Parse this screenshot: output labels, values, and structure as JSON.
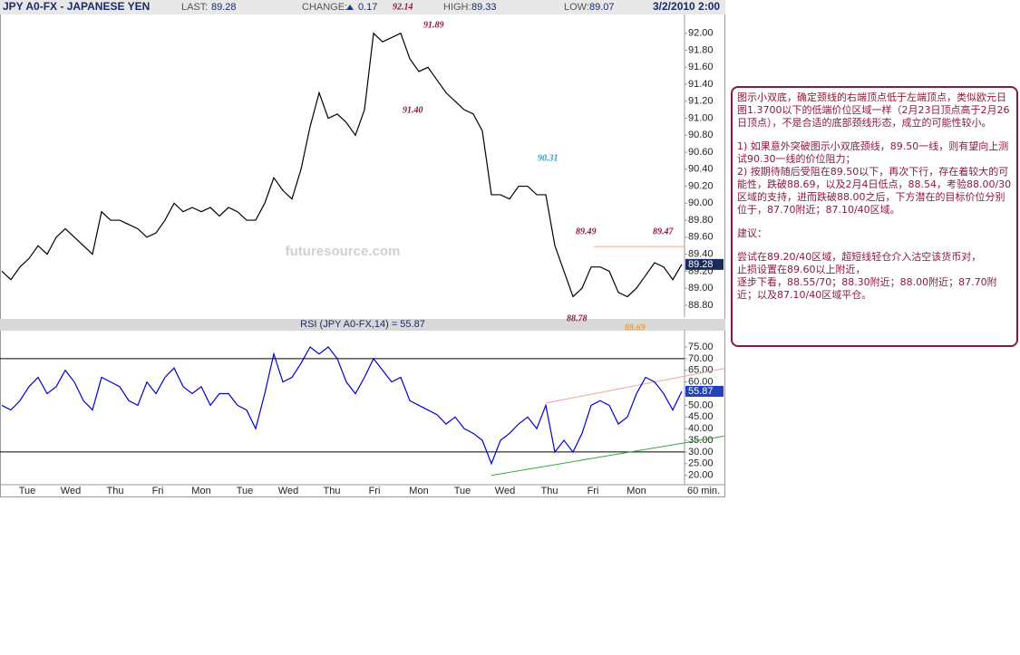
{
  "header": {
    "title": "JPY A0-FX - JAPANESE YEN",
    "last_label": "LAST:",
    "last": "89.28",
    "change_label": "CHANGE:",
    "change": "0.17",
    "high_label": "HIGH:",
    "high": "89.33",
    "low_label": "LOW:",
    "low": "89.07",
    "date": "3/2/2010 2:00"
  },
  "chart_data": [
    {
      "type": "line",
      "watermark": "futuresource.com",
      "series": [
        {
          "color": "#000000",
          "values": [
            89.2,
            89.1,
            89.25,
            89.35,
            89.5,
            89.4,
            89.6,
            89.7,
            89.6,
            89.5,
            89.4,
            89.9,
            89.8,
            89.8,
            89.75,
            89.7,
            89.6,
            89.65,
            89.8,
            90.0,
            89.9,
            89.95,
            89.9,
            89.95,
            89.85,
            89.95,
            89.9,
            89.8,
            89.8,
            90.0,
            90.3,
            90.15,
            90.05,
            90.4,
            90.9,
            91.3,
            91.0,
            91.05,
            90.95,
            90.8,
            91.1,
            92.0,
            91.9,
            91.95,
            92.0,
            91.7,
            91.55,
            91.6,
            91.45,
            91.3,
            91.2,
            91.1,
            91.05,
            90.85,
            90.1,
            90.1,
            90.05,
            90.2,
            90.2,
            90.1,
            90.1,
            89.5,
            89.2,
            88.9,
            89.0,
            89.25,
            89.25,
            89.2,
            88.95,
            88.9,
            89.0,
            89.15,
            89.3,
            89.25,
            89.1,
            89.28
          ]
        }
      ],
      "ylim": [
        88.66,
        92.2
      ],
      "yticks": [
        {
          "value": 88.8,
          "label": "88.80"
        },
        {
          "value": 89.0,
          "label": "89.00"
        },
        {
          "value": 89.2,
          "label": "89.20"
        },
        {
          "value": 89.4,
          "label": "89.40"
        },
        {
          "value": 89.6,
          "label": "89.60"
        },
        {
          "value": 89.8,
          "label": "89.80"
        },
        {
          "value": 90.0,
          "label": "90.00"
        },
        {
          "value": 90.2,
          "label": "90.20"
        },
        {
          "value": 90.4,
          "label": "90.40"
        },
        {
          "value": 90.6,
          "label": "90.60"
        },
        {
          "value": 90.8,
          "label": "90.80"
        },
        {
          "value": 91.0,
          "label": "91.00"
        },
        {
          "value": 91.2,
          "label": "91.20"
        },
        {
          "value": 91.4,
          "label": "91.40"
        },
        {
          "value": 91.6,
          "label": "91.60"
        },
        {
          "value": 91.8,
          "label": "91.80"
        },
        {
          "value": 92.0,
          "label": "92.00"
        }
      ],
      "hlines": [
        {
          "value": 89.49,
          "color": "#f4a0a0"
        }
      ],
      "annotations": [
        {
          "text": "92.14",
          "color": "#8b1a3a"
        },
        {
          "text": "91.89",
          "color": "#8b1a3a"
        },
        {
          "text": "91.40",
          "color": "#8b1a3a"
        },
        {
          "text": "90.31",
          "color": "#22a0c8"
        },
        {
          "text": "89.49",
          "color": "#8b1a3a"
        },
        {
          "text": "89.47",
          "color": "#8b1a3a"
        },
        {
          "text": "88.78",
          "color": "#8b1a3a"
        },
        {
          "text": "88.69",
          "color": "#f0a030"
        }
      ]
    },
    {
      "type": "line",
      "title": "RSI (JPY A0-FX,14) = 55.87",
      "last_label": "55.87",
      "series": [
        {
          "color": "#0000cc",
          "values": [
            50,
            48,
            52,
            58,
            62,
            55,
            58,
            65,
            60,
            52,
            48,
            62,
            60,
            58,
            52,
            50,
            60,
            55,
            62,
            66,
            58,
            55,
            58,
            50,
            55,
            55,
            50,
            48,
            40,
            55,
            72,
            60,
            62,
            68,
            75,
            72,
            75,
            70,
            60,
            55,
            62,
            70,
            65,
            60,
            62,
            52,
            50,
            48,
            46,
            42,
            45,
            40,
            38,
            35,
            25,
            35,
            38,
            42,
            45,
            40,
            50,
            30,
            35,
            30,
            38,
            50,
            52,
            50,
            42,
            45,
            55,
            62,
            60,
            55,
            48,
            56
          ]
        }
      ],
      "ylim": [
        16,
        81.6
      ],
      "yticks": [
        {
          "value": 20,
          "label": "20.00"
        },
        {
          "value": 25,
          "label": "25.00"
        },
        {
          "value": 30,
          "label": "30.00"
        },
        {
          "value": 35,
          "label": "35.00"
        },
        {
          "value": 40,
          "label": "40.00"
        },
        {
          "value": 45,
          "label": "45.00"
        },
        {
          "value": 50,
          "label": "50.00"
        },
        {
          "value": 55,
          "label": "55.00"
        },
        {
          "value": 60,
          "label": "60.00"
        },
        {
          "value": 65,
          "label": "65.00"
        },
        {
          "value": 70,
          "label": "70.00"
        },
        {
          "value": 75,
          "label": "75.00"
        }
      ],
      "hlines": [
        {
          "value": 70,
          "color": "#000000"
        },
        {
          "value": 30,
          "color": "#000000"
        }
      ],
      "trendlines": [
        {
          "color": "#f4a0a0",
          "points": [
            [
              60,
              51
            ],
            [
              80,
              66
            ]
          ]
        },
        {
          "color": "#33aa33",
          "points": [
            [
              54,
              20
            ],
            [
              80,
              37
            ]
          ]
        }
      ],
      "x_labels": [
        "Tue",
        "Wed",
        "Thu",
        "Fri",
        "Mon",
        "Tue",
        "Wed",
        "Thu",
        "Fri",
        "Mon",
        "Tue",
        "Wed",
        "Thu",
        "Fri",
        "Mon"
      ],
      "x_unit": "60 min."
    }
  ],
  "note": {
    "paragraphs": [
      "图示小双底，确定颈线的右端顶点低于左端顶点，类似欧元日图1.3700以下的低端价位区域一样（2月23日顶点高于2月26日顶点），不是合适的底部颈线形态，成立的可能性较小。",
      "1) 如果意外突破图示小双底颈线，89.50一线，则有望向上测试90.30一线的价位阻力；",
      "2) 按期待随后受阻在89.50以下，再次下行，存在着较大的可能性，跌破88.69，以及2月4日低点，88.54，考验88.00/30区域的支持，进而跌破88.00之后，下方潜在的目标价位分别位于，87.70附近；87.10/40区域。",
      "建议：",
      "尝试在89.20/40区域，超短线轻仓介入沽空该货币对，",
      "止损设置在89.60以上附近，",
      "逐步下看，88.55/70；88.30附近；88.00附近；87.70附近；以及87.10/40区域平仓。"
    ]
  }
}
